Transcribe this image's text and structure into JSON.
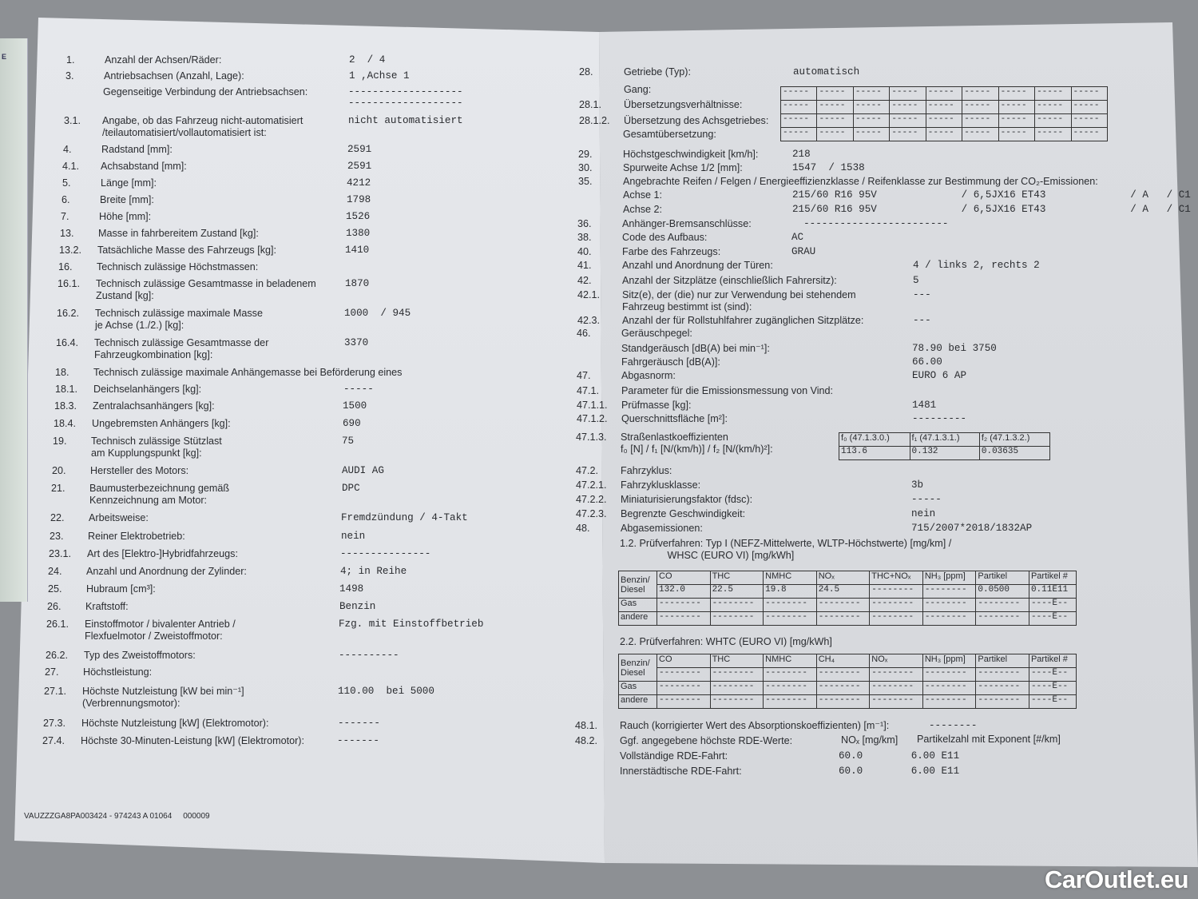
{
  "left": {
    "rows": [
      {
        "num": "1.",
        "label": "Anzahl der Achsen/Räder:",
        "value": "2  / 4"
      },
      {
        "num": "3.",
        "label": "Antriebsachsen (Anzahl, Lage):",
        "value": "1 ,Achse 1"
      },
      {
        "num": "",
        "label": "Gegenseitige Verbindung der Antriebsachsen:",
        "value": "-------------------\n-------------------"
      },
      {
        "num": "3.1.",
        "label": "Angabe, ob das Fahrzeug nicht-automatisiert\n/teilautomatisiert/vollautomatisiert ist:",
        "value": "nicht automatisiert"
      },
      {
        "num": "4.",
        "label": "Radstand [mm]:",
        "value": "2591"
      },
      {
        "num": "4.1.",
        "label": "Achsabstand [mm]:",
        "value": "2591"
      },
      {
        "num": "5.",
        "label": "Länge [mm]:",
        "value": "4212"
      },
      {
        "num": "6.",
        "label": "Breite [mm]:",
        "value": "1798"
      },
      {
        "num": "7.",
        "label": "Höhe [mm]:",
        "value": "1526"
      },
      {
        "num": "13.",
        "label": "Masse in fahrbereitem Zustand [kg]:",
        "value": "1380"
      },
      {
        "num": "13.2.",
        "label": "Tatsächliche Masse des Fahrzeugs [kg]:",
        "value": "1410"
      },
      {
        "num": "16.",
        "label": "Technisch zulässige Höchstmassen:",
        "value": ""
      },
      {
        "num": "16.1.",
        "label": "Technisch zulässige Gesamtmasse in beladenem\nZustand [kg]:",
        "value": "1870"
      },
      {
        "num": "16.2.",
        "label": "Technisch zulässige maximale Masse\nje Achse (1./2.) [kg]:",
        "value": "1000  / 945"
      },
      {
        "num": "16.4.",
        "label": "Technisch zulässige Gesamtmasse der\nFahrzeugkombination [kg]:",
        "value": "3370"
      },
      {
        "num": "18.",
        "label": "Technisch zulässige maximale Anhängemasse bei Beförderung eines",
        "value": ""
      },
      {
        "num": "18.1.",
        "label": "Deichselanhängers [kg]:",
        "value": "-----"
      },
      {
        "num": "18.3.",
        "label": "Zentralachsanhängers [kg]:",
        "value": "1500"
      },
      {
        "num": "18.4.",
        "label": "Ungebremsten Anhängers [kg]:",
        "value": "690"
      },
      {
        "num": "19.",
        "label": "Technisch zulässige Stützlast\nam Kupplungspunkt [kg]:",
        "value": "75"
      },
      {
        "num": "20.",
        "label": "Hersteller des Motors:",
        "value": "AUDI AG"
      },
      {
        "num": "21.",
        "label": "Baumusterbezeichnung gemäß\nKennzeichnung am Motor:",
        "value": "DPC"
      },
      {
        "num": "22.",
        "label": "Arbeitsweise:",
        "value": "Fremdzündung / 4-Takt"
      },
      {
        "num": "23.",
        "label": "Reiner Elektrobetrieb:",
        "value": "nein"
      },
      {
        "num": "23.1.",
        "label": "Art des [Elektro-]Hybridfahrzeugs:",
        "value": "---------------"
      },
      {
        "num": "24.",
        "label": "Anzahl und Anordnung der Zylinder:",
        "value": "4; in Reihe"
      },
      {
        "num": "25.",
        "label": "Hubraum [cm³]:",
        "value": "1498"
      },
      {
        "num": "26.",
        "label": "Kraftstoff:",
        "value": "Benzin"
      },
      {
        "num": "26.1.",
        "label": "Einstoffmotor / bivalenter Antrieb /\nFlexfuelmotor / Zweistoffmotor:",
        "value": "Fzg. mit Einstoffbetrieb"
      },
      {
        "num": "26.2.",
        "label": "Typ des Zweistoffmotors:",
        "value": "----------"
      },
      {
        "num": "27.",
        "label": "Höchstleistung:",
        "value": ""
      },
      {
        "num": "27.1.",
        "label": "Höchste Nutzleistung [kW bei min⁻¹]\n(Verbrennungsmotor):",
        "value": "110.00  bei 5000"
      },
      {
        "num": "27.3.",
        "label": "Höchste Nutzleistung [kW] (Elektromotor):",
        "value": "-------"
      },
      {
        "num": "27.4.",
        "label": "Höchste 30-Minuten-Leistung [kW] (Elektromotor):",
        "value": "-------"
      }
    ],
    "footer_code": "VAUZZZGA8PA003424 - 974243 A 01064     000009"
  },
  "right": {
    "rows": [
      {
        "num": "28.",
        "label": "Getriebe (Typ):",
        "value": "automatisch"
      },
      {
        "num": "",
        "label": "Gang:",
        "value": ""
      },
      {
        "num": "28.1.",
        "label": "Übersetzungsverhältnisse:",
        "value": ""
      },
      {
        "num": "28.1.2.",
        "label": "Übersetzung des Achsgetriebes:",
        "value": ""
      },
      {
        "num": "",
        "label": "Gesamtübersetzung:",
        "value": ""
      },
      {
        "num": "29.",
        "label": "Höchstgeschwindigkeit [km/h]:",
        "value": "218"
      },
      {
        "num": "30.",
        "label": "Spurweite Achse 1/2 [mm]:",
        "value": "1547  / 1538"
      },
      {
        "num": "35.",
        "label": "Angebrachte Reifen / Felgen / Energieeffizienzklasse / Reifenklasse zur Bestimmung der CO₂-Emissionen:",
        "value": ""
      },
      {
        "num": "",
        "label": "Achse 1:",
        "value": "215/60 R16 95V              / 6,5JX16 ET43              / A   / C1"
      },
      {
        "num": "",
        "label": "Achse 2:",
        "value": "215/60 R16 95V              / 6,5JX16 ET43              / A   / C1"
      },
      {
        "num": "36.",
        "label": "Anhänger-Bremsanschlüsse:",
        "value": "  ------------------------"
      },
      {
        "num": "38.",
        "label": "Code des Aufbaus:",
        "value": "AC"
      },
      {
        "num": "40.",
        "label": "Farbe des Fahrzeugs:",
        "value": "GRAU"
      },
      {
        "num": "41.",
        "label": "Anzahl und Anordnung der Türen:",
        "value": "                   4   / links 2, rechts 2"
      },
      {
        "num": "42.",
        "label": "Anzahl der Sitzplätze (einschließlich Fahrersitz):",
        "value": "                   5"
      },
      {
        "num": "42.1.",
        "label": "Sitz(e), der (die) nur zur Verwendung bei stehendem\nFahrzeug bestimmt ist (sind):",
        "value": "                   ---"
      },
      {
        "num": "42.3.",
        "label": "Anzahl der für Rollstuhlfahrer zugänglichen Sitzplätze:",
        "value": "                   ---"
      },
      {
        "num": "46.",
        "label": "Geräuschpegel:",
        "value": ""
      },
      {
        "num": "",
        "label": "Standgeräusch [dB(A) bei min⁻¹]:",
        "value": "                   78.90  bei 3750"
      },
      {
        "num": "",
        "label": "Fahrgeräusch [dB(A)]:",
        "value": "                   66.00"
      },
      {
        "num": "47.",
        "label": "Abgasnorm:",
        "value": "                   EURO 6 AP"
      },
      {
        "num": "47.1.",
        "label": "Parameter für die Emissionsmessung von Vind:",
        "value": ""
      },
      {
        "num": "47.1.1.",
        "label": "Prüfmasse [kg]:",
        "value": "                   1481"
      },
      {
        "num": "47.1.2.",
        "label": "Querschnittsfläche [m²]:",
        "value": "                   ---------"
      },
      {
        "num": "47.1.3.",
        "label": "Straßenlastkoeffizienten\nf₀ [N] / f₁ [N/(km/h)] / f₂ [N/(km/h)²]:",
        "value": ""
      },
      {
        "num": "47.2.",
        "label": "Fahrzyklus:",
        "value": ""
      },
      {
        "num": "47.2.1.",
        "label": "Fahrzyklusklasse:",
        "value": "                   3b"
      },
      {
        "num": "47.2.2.",
        "label": "Miniaturisierungsfaktor (fdsc):",
        "value": "                   -----"
      },
      {
        "num": "47.2.3.",
        "label": "Begrenzte Geschwindigkeit:",
        "value": "                   nein"
      },
      {
        "num": "48.",
        "label": "Abgasemissionen:",
        "value": "                   715/2007*2018/1832AP"
      },
      {
        "num": "",
        "label": "1.2. Prüfverfahren: Typ I (NEFZ-Mittelwerte, WLTP-Höchstwerte) [mg/km] /\n                 WHSC (EURO VI) [mg/kWh]",
        "value": ""
      },
      {
        "num": "",
        "label": "2.2. Prüfverfahren: WHTC (EURO VI) [mg/kWh]",
        "value": ""
      },
      {
        "num": "48.1.",
        "label": "Rauch (korrigierter Wert des Absorptionskoeffizienten) [m⁻¹]:",
        "value": "    --------"
      },
      {
        "num": "48.2.",
        "label": "Ggf. angegebene höchste RDE-Werte:",
        "value": ""
      },
      {
        "num": "",
        "label": "Vollständige RDE-Fahrt:",
        "value": "60.0        6.00 E11"
      },
      {
        "num": "",
        "label": "Innerstädtische RDE-Fahrt:",
        "value": "60.0        6.00 E11"
      }
    ],
    "rde_headers": {
      "nox": "NOₓ [mg/km]",
      "pn": "Partikelzahl mit Exponent [#/km]"
    },
    "gear_table": {
      "rows": 4,
      "cols": 9,
      "cell": "-----"
    },
    "road_load_table": {
      "headers": [
        "f₀ (47.1.3.0.)",
        "f₁ (47.1.3.1.)",
        "f₂ (47.1.3.2.)"
      ],
      "values": [
        "113.6",
        "0.132",
        "0.03635"
      ]
    },
    "emission_table_1": {
      "headers": [
        "",
        "CO",
        "THC",
        "NMHC",
        "NOₓ",
        "THC+NOₓ",
        "NH₃ [ppm]",
        "Partikel",
        "Partikel #"
      ],
      "rows": [
        [
          "Benzin/\nDiesel",
          "132.0",
          "22.5",
          "19.8",
          "24.5",
          "--------",
          "--------",
          "0.0500",
          "0.11E11"
        ],
        [
          "Gas",
          "--------",
          "--------",
          "--------",
          "--------",
          "--------",
          "--------",
          "--------",
          "----E--"
        ],
        [
          "andere",
          "--------",
          "--------",
          "--------",
          "--------",
          "--------",
          "--------",
          "--------",
          "----E--"
        ]
      ]
    },
    "emission_table_2": {
      "headers": [
        "",
        "CO",
        "THC",
        "NMHC",
        "CH₄",
        "NOₓ",
        "NH₃ [ppm]",
        "Partikel",
        "Partikel #"
      ],
      "rows": [
        [
          "Benzin/\nDiesel",
          "--------",
          "--------",
          "--------",
          "--------",
          "--------",
          "--------",
          "--------",
          "----E--"
        ],
        [
          "Gas",
          "--------",
          "--------",
          "--------",
          "--------",
          "--------",
          "--------",
          "--------",
          "----E--"
        ],
        [
          "andere",
          "--------",
          "--------",
          "--------",
          "--------",
          "--------",
          "--------",
          "--------",
          "----E--"
        ]
      ]
    }
  },
  "side_strip_text": "E",
  "watermark": "CarOutlet.eu"
}
